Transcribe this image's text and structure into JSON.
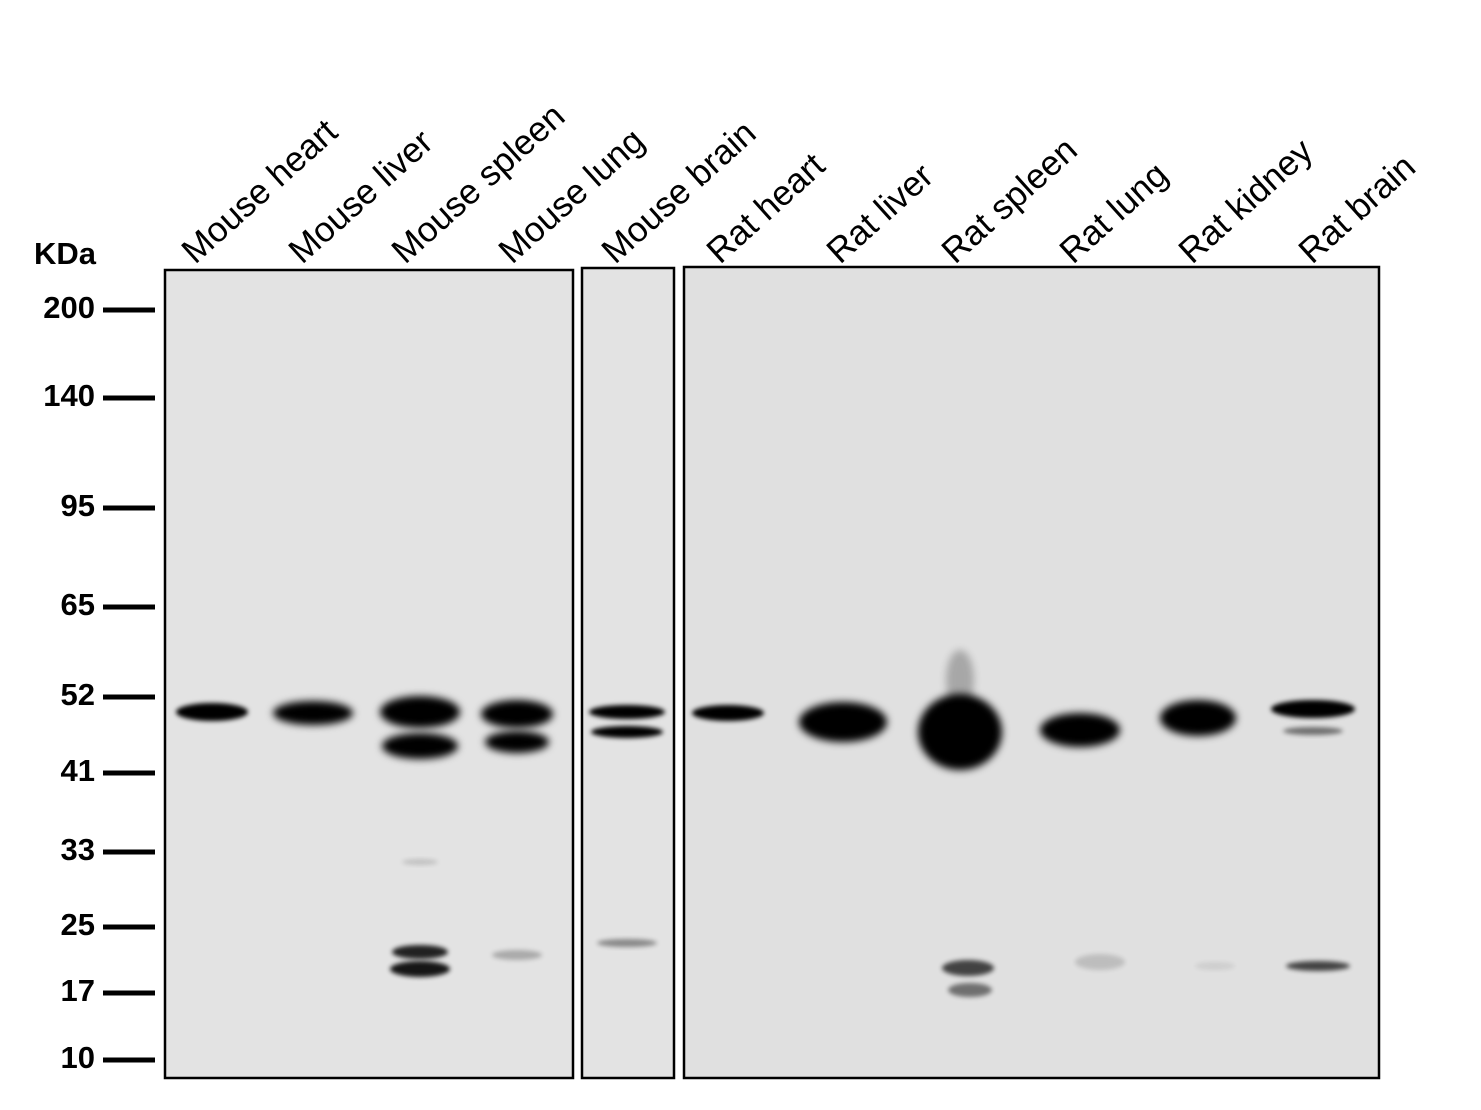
{
  "unit": "KDa",
  "markers": [
    "200",
    "140",
    "95",
    "65",
    "52",
    "41",
    "33",
    "25",
    "17",
    "10"
  ],
  "lanes": [
    "Mouse heart",
    "Mouse liver",
    "Mouse spleen",
    "Mouse lung",
    "Mouse brain",
    "Rat heart",
    "Rat liver",
    "Rat spleen",
    "Rat lung",
    "Rat kidney",
    "Rat brain"
  ]
}
